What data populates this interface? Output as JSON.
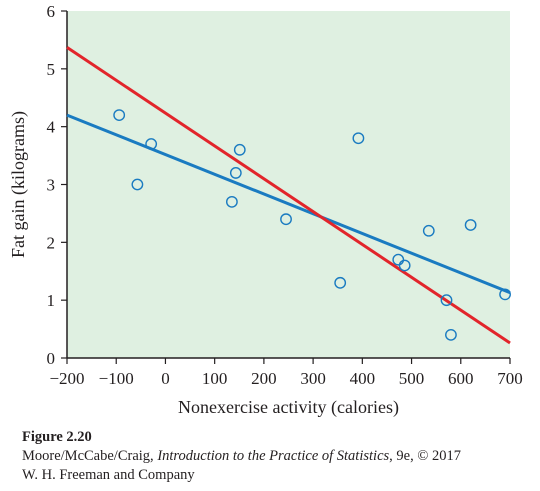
{
  "chart_data": {
    "type": "scatter",
    "xlabel": "Nonexercise activity (calories)",
    "ylabel": "Fat gain (kilograms)",
    "xlim": [
      -200,
      700
    ],
    "ylim": [
      0,
      6
    ],
    "x_ticks": [
      -200,
      -100,
      0,
      100,
      200,
      300,
      400,
      500,
      600,
      700
    ],
    "x_tick_labels": [
      "−200",
      "−100",
      "0",
      "100",
      "200",
      "300",
      "400",
      "500",
      "600",
      "700"
    ],
    "y_ticks": [
      0,
      1,
      2,
      3,
      4,
      5,
      6
    ],
    "y_tick_labels": [
      "0",
      "1",
      "2",
      "3",
      "4",
      "5",
      "6"
    ],
    "background_color": "#dff0e1",
    "points": [
      {
        "x": -94,
        "y": 4.2
      },
      {
        "x": -57,
        "y": 3.0
      },
      {
        "x": -29,
        "y": 3.7
      },
      {
        "x": 135,
        "y": 2.7
      },
      {
        "x": 143,
        "y": 3.2
      },
      {
        "x": 151,
        "y": 3.6
      },
      {
        "x": 245,
        "y": 2.4
      },
      {
        "x": 355,
        "y": 1.3
      },
      {
        "x": 392,
        "y": 3.8
      },
      {
        "x": 473,
        "y": 1.7
      },
      {
        "x": 486,
        "y": 1.6
      },
      {
        "x": 535,
        "y": 2.2
      },
      {
        "x": 571,
        "y": 1.0
      },
      {
        "x": 580,
        "y": 0.4
      },
      {
        "x": 620,
        "y": 2.3
      },
      {
        "x": 690,
        "y": 1.1
      }
    ],
    "point_color": "#1a7bc1",
    "lines": [
      {
        "x": [
          -200,
          700
        ],
        "y": [
          4.2,
          1.13
        ],
        "color": "#1a7bc1"
      },
      {
        "x": [
          -200,
          700
        ],
        "y": [
          5.37,
          0.26
        ],
        "color": "#e2252b"
      }
    ]
  },
  "caption": {
    "figure": "Figure 2.20",
    "line1_prefix": "Moore/McCabe/Craig, ",
    "book_title": "Introduction to the Practice of Statistics",
    "line1_suffix": ", 9e, © 2017",
    "line2": "W. H. Freeman and Company"
  }
}
